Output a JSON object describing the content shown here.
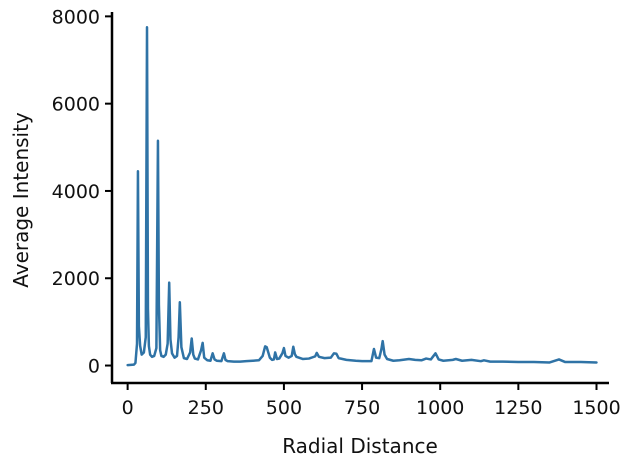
{
  "chart_data": {
    "type": "line",
    "title": "",
    "xlabel": "Radial Distance",
    "ylabel": "Average Intensity",
    "xlim": [
      -50,
      1540
    ],
    "ylim": [
      -400,
      8100
    ],
    "xticks": [
      0,
      250,
      500,
      750,
      1000,
      1250,
      1500
    ],
    "yticks": [
      0,
      2000,
      4000,
      6000,
      8000
    ],
    "xtick_labels": [
      "0",
      "250",
      "500",
      "750",
      "1000",
      "1250",
      "1500"
    ],
    "ytick_labels": [
      "0",
      "2000",
      "4000",
      "6000",
      "8000"
    ],
    "grid": false,
    "legend": "none",
    "series_color": "#2f73a6",
    "series": [
      {
        "name": "",
        "x": [
          0,
          20,
          25,
          30,
          33,
          36,
          40,
          45,
          52,
          58,
          62,
          65,
          68,
          72,
          78,
          85,
          92,
          97,
          100,
          104,
          108,
          115,
          122,
          128,
          133,
          137,
          142,
          150,
          158,
          163,
          167,
          172,
          180,
          190,
          200,
          205,
          210,
          215,
          225,
          235,
          240,
          245,
          255,
          265,
          272,
          278,
          285,
          300,
          308,
          313,
          320,
          340,
          360,
          380,
          400,
          420,
          432,
          440,
          445,
          450,
          455,
          462,
          468,
          472,
          478,
          485,
          495,
          500,
          505,
          515,
          525,
          530,
          535,
          540,
          560,
          580,
          600,
          605,
          612,
          630,
          650,
          660,
          668,
          675,
          700,
          730,
          750,
          770,
          780,
          788,
          795,
          805,
          812,
          816,
          822,
          830,
          850,
          870,
          900,
          920,
          940,
          955,
          970,
          985,
          995,
          1010,
          1040,
          1050,
          1070,
          1100,
          1130,
          1140,
          1160,
          1200,
          1250,
          1300,
          1350,
          1380,
          1400,
          1450,
          1500
        ],
        "y": [
          10,
          20,
          60,
          500,
          4450,
          900,
          450,
          250,
          300,
          650,
          7750,
          1300,
          450,
          250,
          200,
          220,
          400,
          5150,
          1400,
          350,
          220,
          200,
          250,
          500,
          1900,
          600,
          280,
          180,
          220,
          650,
          1450,
          420,
          170,
          150,
          300,
          620,
          250,
          160,
          140,
          350,
          520,
          180,
          120,
          110,
          280,
          140,
          110,
          100,
          280,
          130,
          100,
          90,
          90,
          100,
          110,
          120,
          220,
          440,
          420,
          300,
          180,
          130,
          140,
          300,
          150,
          160,
          280,
          400,
          220,
          180,
          220,
          430,
          260,
          200,
          150,
          160,
          210,
          290,
          200,
          170,
          180,
          280,
          270,
          170,
          130,
          110,
          100,
          100,
          100,
          380,
          180,
          170,
          380,
          560,
          250,
          150,
          110,
          120,
          150,
          130,
          120,
          160,
          140,
          280,
          140,
          110,
          130,
          150,
          110,
          130,
          100,
          120,
          90,
          90,
          80,
          80,
          70,
          140,
          80,
          80,
          70
        ]
      }
    ]
  }
}
